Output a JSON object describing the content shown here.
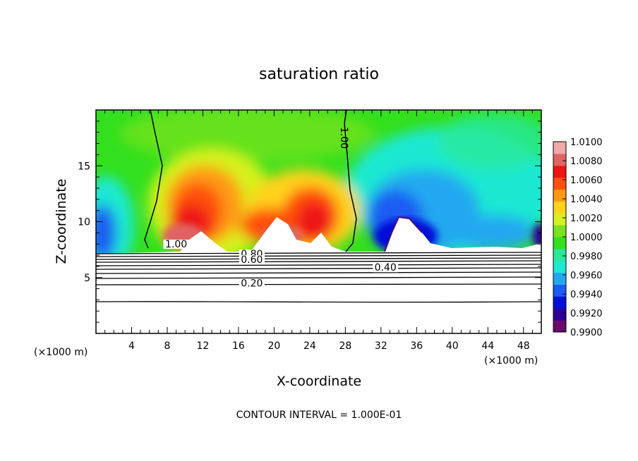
{
  "chart_data": {
    "type": "heatmap",
    "title": "saturation ratio",
    "xlabel": "X-coordinate",
    "ylabel": "Z-coordinate",
    "x_unit_left": "(×1000 m)",
    "x_unit_right": "(×1000 m)",
    "footer": "CONTOUR INTERVAL = 1.000E-01",
    "xlim": [
      0,
      50
    ],
    "ylim": [
      0,
      20
    ],
    "xticks": [
      4,
      8,
      12,
      16,
      20,
      24,
      28,
      32,
      36,
      40,
      44,
      48
    ],
    "yticks": [
      5,
      10,
      15
    ],
    "colorbar": {
      "ticks": [
        "1.0100",
        "1.0080",
        "1.0060",
        "1.0040",
        "1.0020",
        "1.0000",
        "0.9980",
        "0.9960",
        "0.9940",
        "0.9920",
        "0.9900"
      ],
      "range": [
        0.99,
        1.01
      ],
      "colors": [
        "#6a0a6e",
        "#2a0096",
        "#0010d8",
        "#1c5cf2",
        "#22a8f0",
        "#1ee8d2",
        "#28e89a",
        "#33e01e",
        "#7ae21e",
        "#d6f01e",
        "#ffd21c",
        "#ff9a12",
        "#ff5010",
        "#ee1414",
        "#e06464",
        "#f0a8a8"
      ]
    },
    "contour_labels": [
      {
        "text": "1.00",
        "x": 9.0,
        "z": 7.7
      },
      {
        "text": "1.00",
        "x": 27.5,
        "z": 17.5
      },
      {
        "text": "0.80",
        "x": 17.5,
        "z": 6.8
      },
      {
        "text": "0.60",
        "x": 17.5,
        "z": 6.3
      },
      {
        "text": "0.40",
        "x": 32.5,
        "z": 5.6
      },
      {
        "text": "0.20",
        "x": 17.5,
        "z": 4.2
      }
    ],
    "contour_levels": [
      0.2,
      0.4,
      0.6,
      0.8,
      1.0
    ]
  }
}
